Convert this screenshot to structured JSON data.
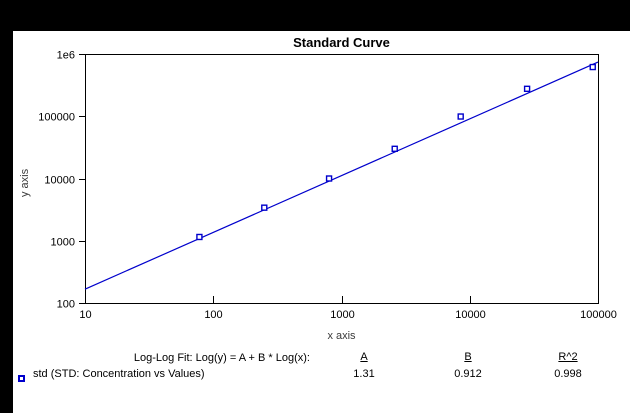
{
  "window": {
    "background_color": "#000000",
    "panel_color": "#ffffff",
    "accent_color": "#0000cc"
  },
  "chart_data": {
    "type": "scatter",
    "title": "Standard Curve",
    "xlabel": "x axis",
    "ylabel": "y axis",
    "x_scale": "log",
    "y_scale": "log",
    "xlim": [
      10,
      100000
    ],
    "ylim": [
      100,
      1000000
    ],
    "grid": false,
    "x_ticks": [
      10,
      100,
      1000,
      10000,
      100000
    ],
    "x_tick_labels": [
      "10",
      "100",
      "1000",
      "10000",
      "100000"
    ],
    "y_ticks": [
      100,
      1000,
      10000,
      100000,
      1000000
    ],
    "y_tick_labels": [
      "100",
      "1000",
      "10000",
      "100000",
      "1e6"
    ],
    "series": [
      {
        "name": "std",
        "legend_label": "std (STD: Concentration vs Values)",
        "marker": "open-square",
        "color": "#0000cc",
        "points": [
          {
            "x": 78,
            "y": 1150
          },
          {
            "x": 250,
            "y": 3400
          },
          {
            "x": 800,
            "y": 10000
          },
          {
            "x": 2600,
            "y": 30000
          },
          {
            "x": 8500,
            "y": 99000
          },
          {
            "x": 28000,
            "y": 276000
          },
          {
            "x": 91000,
            "y": 617000
          }
        ]
      }
    ],
    "fit": {
      "equation_label": "Log-Log Fit: Log(y) = A + B * Log(x):",
      "A": 1.31,
      "B": 0.912,
      "R2": 0.998,
      "line_x_range": [
        10,
        100000
      ],
      "color": "#0000cc"
    }
  },
  "fit_table": {
    "fit_label": "Log-Log Fit: Log(y) = A + B * Log(x):",
    "col_a_header": "A",
    "col_b_header": "B",
    "col_r2_header": "R^2",
    "a_value": "1.31",
    "b_value": "0.912",
    "r2_value": "0.998",
    "legend_label": "std (STD: Concentration vs Values)"
  }
}
